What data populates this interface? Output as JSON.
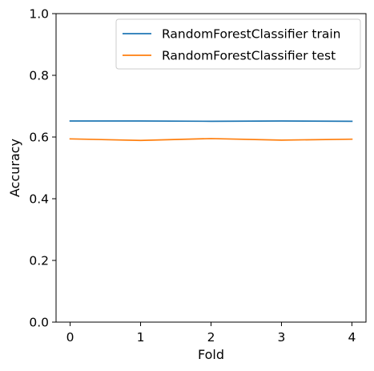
{
  "chart_data": {
    "type": "line",
    "x": [
      0,
      1,
      2,
      3,
      4
    ],
    "series": [
      {
        "name": "RandomForestClassifier train",
        "values": [
          0.652,
          0.652,
          0.651,
          0.652,
          0.651
        ],
        "color": "#1f77b4"
      },
      {
        "name": "RandomForestClassifier test",
        "values": [
          0.594,
          0.589,
          0.595,
          0.59,
          0.593
        ],
        "color": "#ff7f0e"
      }
    ],
    "xlabel": "Fold",
    "ylabel": "Accuracy",
    "xlim": [
      -0.2,
      4.2
    ],
    "ylim": [
      0.0,
      1.0
    ],
    "xticks": [
      0,
      1,
      2,
      3,
      4
    ],
    "yticks": [
      0.0,
      0.2,
      0.4,
      0.6,
      0.8,
      1.0
    ],
    "xtick_labels": [
      "0",
      "1",
      "2",
      "3",
      "4"
    ],
    "ytick_labels": [
      "0.0",
      "0.2",
      "0.4",
      "0.6",
      "0.8",
      "1.0"
    ],
    "grid": false,
    "legend_position": "top-right"
  }
}
